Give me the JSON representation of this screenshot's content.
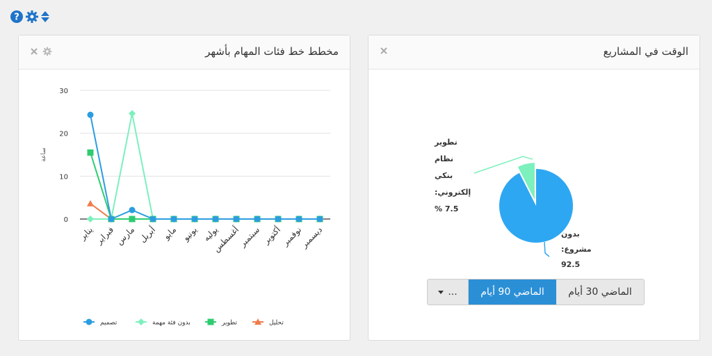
{
  "toolbar": {
    "icons": [
      "help-icon",
      "gear-icon",
      "sort-icon"
    ]
  },
  "left_panel": {
    "title": "مخطط خط فئات المهام بأشهر"
  },
  "right_panel": {
    "title": "الوقت في المشاريع",
    "slice_labels": {
      "tatweer": [
        "تطوير",
        "نظام",
        "بنكي",
        "إلكتروني:",
        "7.5 %"
      ],
      "bedoon": [
        "بدون",
        "مشروع:",
        "92.5"
      ]
    },
    "range": {
      "more_label": "...",
      "active_label": "الماضي 90 أيام",
      "other_label": "الماضي 30 أيام"
    }
  },
  "chart_data": [
    {
      "type": "line",
      "ylabel": "ساعة",
      "ylim": [
        0,
        30
      ],
      "yticks": [
        0,
        10,
        20,
        30
      ],
      "categories": [
        "يناير",
        "فبراير",
        "مارس",
        "أبريل",
        "مايو",
        "يونيو",
        "يوليه",
        "أغسطس",
        "سبتمبر",
        "أكتوبر",
        "نوفمبر",
        "ديسمبر"
      ],
      "series": [
        {
          "name": "تصميم",
          "color": "#2b9de0",
          "marker": "circle",
          "values": [
            24.3,
            0,
            2.1,
            0,
            0,
            0,
            0,
            0,
            0,
            0,
            0,
            0
          ]
        },
        {
          "name": "بدون فئة مهمة",
          "color": "#7cf0bd",
          "marker": "diamond",
          "values": [
            0,
            0,
            24.6,
            0,
            0,
            0,
            0,
            0,
            0,
            0,
            0,
            0
          ]
        },
        {
          "name": "تطوير",
          "color": "#2ecc71",
          "marker": "square",
          "values": [
            15.5,
            0,
            0,
            0,
            0,
            0,
            0,
            0,
            0,
            0,
            0,
            0
          ]
        },
        {
          "name": "تحليل",
          "color": "#f07a4a",
          "marker": "triangle",
          "values": [
            3.6,
            0,
            0,
            0,
            0,
            0,
            0,
            0,
            0,
            0,
            0,
            0
          ]
        }
      ],
      "grid": true,
      "legend": "bottom"
    },
    {
      "type": "pie",
      "slices": [
        {
          "label": "تطوير نظام بنكي إلكتروني",
          "value": 7.5,
          "color": "#7cf0bd"
        },
        {
          "label": "بدون مشروع",
          "value": 92.5,
          "color": "#2ea7f2"
        }
      ]
    }
  ]
}
